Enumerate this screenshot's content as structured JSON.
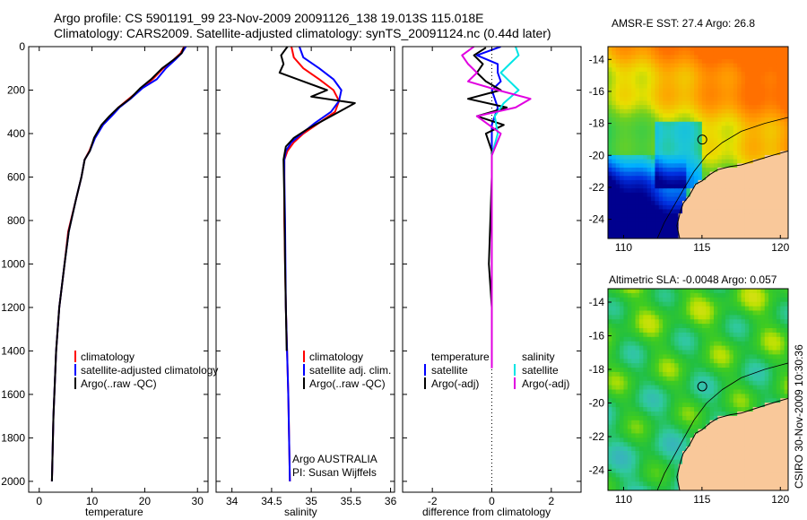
{
  "title": {
    "line1": "Argo profile: CS 5901191_99 23-Nov-2009 20091126_138 19.013S 115.018E",
    "line2": "Climatology: CARS2009. Satellite-adjusted climatology: synTS_20091124.nc (0.44d later)"
  },
  "credit": "CSIRO 30-Nov-2009 10:30:36",
  "colors": {
    "climatology": "#ff0000",
    "satellite": "#0000ff",
    "argo": "#000000",
    "sal_satellite": "#00e5e5",
    "sal_argo": "#e000e0",
    "land": "#f9c89a"
  },
  "chart_data": [
    {
      "type": "line",
      "name": "temperature-panel",
      "xlabel": "temperature",
      "ylabel": "",
      "ylim": [
        2050,
        0
      ],
      "xlim": [
        -2,
        32
      ],
      "xticks": [
        "0",
        "10",
        "20",
        "30"
      ],
      "xtick_values": [
        0,
        10,
        20,
        30
      ],
      "yticks": [
        "0",
        "200",
        "400",
        "600",
        "800",
        "1000",
        "1200",
        "1400",
        "1600",
        "1800",
        "2000"
      ],
      "ytick_values": [
        0,
        200,
        400,
        600,
        800,
        1000,
        1200,
        1400,
        1600,
        1800,
        2000
      ],
      "legend": [
        "climatology",
        "satellite-adjusted climatology",
        "Argo(..raw -QC)"
      ],
      "series": [
        {
          "name": "climatology",
          "color": "#ff0000",
          "x": [
            27.5,
            26.8,
            25.5,
            23.5,
            21.5,
            19.5,
            17,
            15,
            13.5,
            12,
            10.5,
            9.5,
            8.6,
            8,
            7,
            5.5,
            4.8,
            3.8,
            3.2,
            2.7,
            2.4
          ],
          "y": [
            0,
            30,
            60,
            100,
            150,
            190,
            240,
            280,
            320,
            360,
            420,
            480,
            520,
            600,
            700,
            850,
            1000,
            1200,
            1400,
            1700,
            2000
          ]
        },
        {
          "name": "satellite-adjusted climatology",
          "color": "#0000ff",
          "x": [
            27.8,
            27,
            25.8,
            24,
            22.3,
            19.6,
            17.3,
            15.2,
            13.7,
            12.1,
            10.6,
            9.6,
            8.6,
            8,
            7,
            5.6,
            4.8,
            3.8,
            3.2,
            2.7,
            2.4
          ],
          "y": [
            0,
            30,
            60,
            100,
            150,
            190,
            240,
            280,
            320,
            360,
            420,
            480,
            520,
            600,
            700,
            850,
            1000,
            1200,
            1400,
            1700,
            2000
          ]
        },
        {
          "name": "Argo(..raw -QC)",
          "color": "#000000",
          "x": [
            27.4,
            27,
            25.5,
            23.3,
            21.2,
            19.2,
            17.2,
            15,
            13.3,
            11.8,
            10.4,
            9.6,
            8.6,
            8,
            7,
            5.6,
            4.8,
            3.8,
            3.2,
            2.7,
            2.4
          ],
          "y": [
            5,
            30,
            60,
            100,
            150,
            190,
            240,
            280,
            320,
            360,
            420,
            480,
            520,
            600,
            700,
            850,
            1000,
            1200,
            1400,
            1700,
            2000
          ]
        }
      ]
    },
    {
      "type": "line",
      "name": "salinity-panel",
      "xlabel": "salinity",
      "ylim": [
        2050,
        0
      ],
      "xlim": [
        33.8,
        36.05
      ],
      "xticks": [
        "34",
        "34.5",
        "35",
        "35.5",
        "36"
      ],
      "xtick_values": [
        34,
        34.5,
        35,
        35.5,
        36
      ],
      "legend": [
        "climatology",
        "satellite adj. clim.",
        "Argo(..raw -QC)"
      ],
      "annotations": [
        "Argo AUSTRALIA",
        "PI: Susan Wijffels"
      ],
      "series": [
        {
          "name": "climatology",
          "color": "#ff0000",
          "x": [
            34.75,
            34.78,
            34.9,
            35.1,
            35.28,
            35.35,
            35.3,
            35.1,
            34.9,
            34.78,
            34.7,
            34.66,
            34.66,
            34.66,
            34.68,
            34.71,
            34.73
          ],
          "y": [
            0,
            50,
            100,
            150,
            200,
            250,
            300,
            350,
            400,
            440,
            480,
            520,
            600,
            800,
            1200,
            1600,
            2000
          ]
        },
        {
          "name": "satellite adj. clim.",
          "color": "#0000ff",
          "x": [
            34.85,
            34.9,
            35.1,
            35.28,
            35.38,
            35.35,
            35.25,
            35.05,
            34.88,
            34.75,
            34.68,
            34.66,
            34.66,
            34.67,
            34.68,
            34.71,
            34.73
          ],
          "y": [
            0,
            50,
            100,
            150,
            200,
            250,
            300,
            350,
            400,
            440,
            480,
            520,
            600,
            800,
            1200,
            1600,
            2000
          ]
        },
        {
          "name": "Argo(..raw -QC)",
          "color": "#000000",
          "x": [
            34.7,
            34.62,
            34.65,
            34.6,
            34.9,
            35.2,
            35.0,
            35.55,
            35.35,
            35.15,
            34.95,
            34.78,
            34.68,
            34.65,
            34.66,
            34.67,
            34.69
          ],
          "y": [
            0,
            40,
            80,
            120,
            160,
            200,
            230,
            260,
            300,
            340,
            380,
            420,
            460,
            520,
            700,
            1000,
            1400
          ]
        }
      ]
    },
    {
      "type": "line",
      "name": "difference-panel",
      "xlabel": "difference from climatology",
      "ylim": [
        2050,
        0
      ],
      "xlim": [
        -3,
        3
      ],
      "xticks": [
        "-2",
        "0",
        "2"
      ],
      "xtick_values": [
        -2,
        0,
        2
      ],
      "legend_left": [
        "temperature",
        "satellite",
        "Argo(-adj)"
      ],
      "legend_right": [
        "salinity",
        "satellite",
        "Argo(-adj)"
      ],
      "series": [
        {
          "name": "temperature satellite",
          "color": "#0000ff",
          "x": [
            0.3,
            -0.5,
            0.2,
            0.2,
            0.3,
            0,
            0.1,
            0.2,
            0.1,
            0,
            0,
            0,
            0,
            0,
            0,
            0
          ],
          "y": [
            0,
            40,
            80,
            120,
            160,
            200,
            240,
            280,
            320,
            360,
            400,
            480,
            600,
            1000,
            1200,
            1420
          ]
        },
        {
          "name": "temperature Argo(-adj)",
          "color": "#000000",
          "x": [
            -0.2,
            -0.6,
            -0.3,
            -0.5,
            -0.2,
            0.3,
            -0.8,
            0.5,
            -0.5,
            0.4,
            -0.2,
            0,
            0,
            -0.1,
            0,
            0
          ],
          "y": [
            5,
            40,
            80,
            120,
            160,
            200,
            240,
            280,
            320,
            360,
            400,
            480,
            600,
            1000,
            1200,
            1420
          ]
        },
        {
          "name": "salinity satellite",
          "color": "#00e5e5",
          "x": [
            0.8,
            0.9,
            0.6,
            0.3,
            0.6,
            0.9,
            0.4,
            0.1,
            0.2,
            0,
            0,
            0
          ],
          "y": [
            0,
            40,
            80,
            120,
            160,
            200,
            260,
            320,
            400,
            500,
            800,
            1400
          ]
        },
        {
          "name": "salinity Argo(-adj)",
          "color": "#e000e0",
          "x": [
            -0.6,
            -1,
            -0.8,
            -0.5,
            -0.8,
            0.2,
            1.3,
            0.8,
            -0.5,
            0.3,
            0,
            0,
            0
          ],
          "y": [
            0,
            40,
            80,
            120,
            160,
            200,
            240,
            280,
            320,
            400,
            500,
            800,
            1480
          ]
        }
      ]
    },
    {
      "type": "heatmap",
      "name": "sst-map",
      "title": "AMSR-E SST: 27.4 Argo: 26.8",
      "xticks": [
        "110",
        "115",
        "120"
      ],
      "xtick_values": [
        110,
        115,
        120
      ],
      "yticks": [
        "-14",
        "-16",
        "-18",
        "-20",
        "-22",
        "-24"
      ],
      "ytick_values": [
        -14,
        -16,
        -18,
        -20,
        -22,
        -24
      ],
      "xlim": [
        109,
        120.5
      ],
      "ylim": [
        -25.2,
        -13.2
      ],
      "argo_position": {
        "lon": 115.018,
        "lat": -19.013
      }
    },
    {
      "type": "heatmap",
      "name": "sla-map",
      "title": "Altimetric SLA: -0.0048 Argo: 0.057",
      "xticks": [
        "110",
        "115",
        "120"
      ],
      "xtick_values": [
        110,
        115,
        120
      ],
      "yticks": [
        "-14",
        "-16",
        "-18",
        "-20",
        "-22",
        "-24"
      ],
      "ytick_values": [
        -14,
        -16,
        -18,
        -20,
        -22,
        -24
      ],
      "xlim": [
        109,
        120.5
      ],
      "ylim": [
        -25.2,
        -13.2
      ],
      "argo_position": {
        "lon": 115.018,
        "lat": -19.013
      }
    }
  ]
}
